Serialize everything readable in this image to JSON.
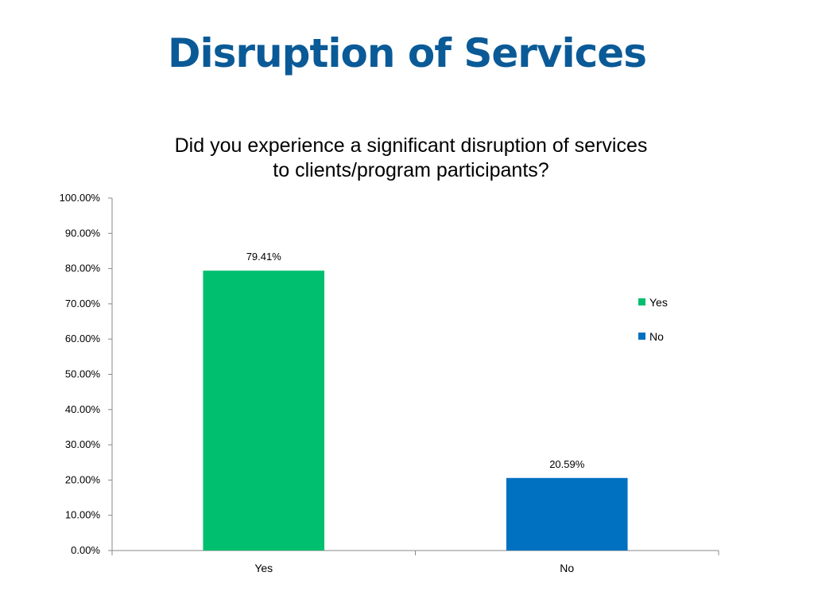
{
  "slide": {
    "title": "Disruption of Services"
  },
  "chart_data": {
    "type": "bar",
    "title": "Did you experience a significant disruption of services to clients/program participants?",
    "categories": [
      "Yes",
      "No"
    ],
    "values": [
      79.41,
      20.59
    ],
    "data_labels": [
      "79.41%",
      "20.59%"
    ],
    "colors": [
      "#00bf6f",
      "#0070c0"
    ],
    "ylim": [
      0,
      100
    ],
    "yticks": [
      "0.00%",
      "10.00%",
      "20.00%",
      "30.00%",
      "40.00%",
      "50.00%",
      "60.00%",
      "70.00%",
      "80.00%",
      "90.00%",
      "100.00%"
    ],
    "xlabel": "",
    "ylabel": "",
    "grid": false,
    "legend": {
      "position": "right",
      "entries": [
        {
          "label": "Yes",
          "color": "#00bf6f"
        },
        {
          "label": "No",
          "color": "#0070c0"
        }
      ]
    }
  }
}
